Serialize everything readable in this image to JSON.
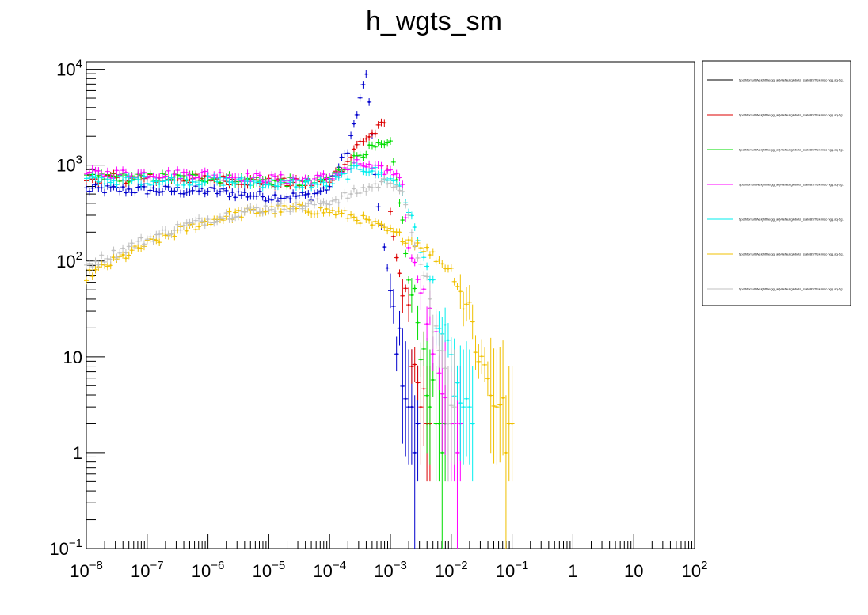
{
  "chart_data": {
    "type": "scatter",
    "title": "h_wgts_sm",
    "xlabel": "",
    "ylabel": "",
    "x_scale": "log",
    "y_scale": "log",
    "xlim": [
      1e-08,
      100
    ],
    "ylim": [
      0.1,
      12000
    ],
    "x_ticks": [
      {
        "value": 1e-08,
        "base": "10",
        "exp": "−8"
      },
      {
        "value": 1e-07,
        "base": "10",
        "exp": "−7"
      },
      {
        "value": 1e-06,
        "base": "10",
        "exp": "−6"
      },
      {
        "value": 1e-05,
        "base": "10",
        "exp": "−5"
      },
      {
        "value": 0.0001,
        "base": "10",
        "exp": "−4"
      },
      {
        "value": 0.001,
        "base": "10",
        "exp": "−3"
      },
      {
        "value": 0.01,
        "base": "10",
        "exp": "−2"
      },
      {
        "value": 0.1,
        "base": "10",
        "exp": "−1"
      },
      {
        "value": 1,
        "base": "1",
        "exp": ""
      },
      {
        "value": 10,
        "base": "10",
        "exp": ""
      },
      {
        "value": 100,
        "base": "10",
        "exp": "2"
      }
    ],
    "y_ticks": [
      {
        "value": 0.1,
        "base": "10",
        "exp": "−1"
      },
      {
        "value": 1,
        "base": "1",
        "exp": ""
      },
      {
        "value": 10,
        "base": "10",
        "exp": ""
      },
      {
        "value": 100,
        "base": "10",
        "exp": "2"
      },
      {
        "value": 1000,
        "base": "10",
        "exp": "3"
      },
      {
        "value": 10000,
        "base": "10",
        "exp": "4"
      }
    ],
    "grid": false,
    "legend_position": "right",
    "series": [
      {
        "color": "#000000",
        "plateau": 0,
        "x": [],
        "y": []
      },
      {
        "color": "#0000cc",
        "plateau": 530,
        "x": [
          1e-08,
          1e-06,
          1e-05,
          5e-05,
          0.0001,
          0.0002,
          0.0003,
          0.0004,
          0.0006,
          0.0008,
          0.001,
          0.0012,
          0.0015,
          0.002,
          0.0025,
          0.003
        ],
        "y": [
          560,
          540,
          470,
          480,
          600,
          1500,
          4000,
          9500,
          500,
          130,
          45,
          20,
          10,
          3,
          1.5,
          1
        ]
      },
      {
        "color": "#dd0000",
        "plateau": 720,
        "x": [
          1e-08,
          1e-06,
          1e-05,
          5e-05,
          0.0001,
          0.0002,
          0.0003,
          0.0005,
          0.0008,
          0.001,
          0.0015,
          0.002,
          0.003,
          0.004,
          0.005
        ],
        "y": [
          730,
          720,
          660,
          640,
          700,
          1100,
          1700,
          2100,
          2700,
          300,
          60,
          20,
          5,
          2,
          1
        ]
      },
      {
        "color": "#00dd00",
        "plateau": 740,
        "x": [
          1e-08,
          1e-06,
          1e-05,
          5e-05,
          0.0001,
          0.0002,
          0.0003,
          0.0005,
          0.001,
          0.0015,
          0.002,
          0.003,
          0.004,
          0.006,
          0.008
        ],
        "y": [
          750,
          740,
          680,
          650,
          720,
          1000,
          1300,
          1500,
          1600,
          350,
          60,
          20,
          6,
          2,
          1
        ]
      },
      {
        "color": "#ff00ff",
        "plateau": 820,
        "x": [
          1e-08,
          1e-06,
          1e-05,
          5e-05,
          0.0001,
          0.0002,
          0.0003,
          0.0005,
          0.001,
          0.0015,
          0.002,
          0.003,
          0.005,
          0.008,
          0.015
        ],
        "y": [
          820,
          800,
          720,
          700,
          760,
          900,
          1050,
          920,
          850,
          800,
          150,
          60,
          15,
          4,
          1
        ]
      },
      {
        "color": "#00eeee",
        "plateau": 700,
        "x": [
          1e-08,
          1e-06,
          1e-05,
          5e-05,
          0.0001,
          0.0002,
          0.0003,
          0.0005,
          0.001,
          0.0015,
          0.003,
          0.005,
          0.008,
          0.015,
          0.025
        ],
        "y": [
          700,
          690,
          650,
          640,
          650,
          800,
          950,
          900,
          700,
          600,
          150,
          50,
          12,
          3,
          1
        ]
      },
      {
        "color": "#f0c000",
        "plateau": 0,
        "x": [
          1e-08,
          3e-08,
          1e-07,
          3e-07,
          1e-06,
          3e-06,
          1e-05,
          3e-05,
          0.0001,
          0.0003,
          0.001,
          0.003,
          0.01,
          0.02,
          0.03,
          0.05,
          0.08,
          0.1
        ],
        "y": [
          70,
          100,
          150,
          200,
          260,
          310,
          340,
          350,
          330,
          280,
          200,
          150,
          80,
          30,
          10,
          4,
          2,
          1
        ]
      },
      {
        "color": "#c0c0c0",
        "plateau": 0,
        "x": [
          1e-08,
          3e-08,
          1e-07,
          3e-07,
          1e-06,
          3e-06,
          1e-05,
          3e-05,
          0.0001,
          0.0002,
          0.0005,
          0.001,
          0.0015,
          0.003,
          0.005,
          0.008,
          0.012
        ],
        "y": [
          90,
          120,
          170,
          220,
          270,
          320,
          360,
          370,
          420,
          480,
          600,
          700,
          550,
          100,
          25,
          6,
          1.5
        ]
      }
    ],
    "legend": [
      {
        "label": "$pathtomultiWeightfile/gg_aQ/defaultglobeta_stateBSTtelemsc-hgq.aq-2g1",
        "color": "#000000"
      },
      {
        "label": "$pathtomultiWeightfile/gg_aQ/defaultglobeta_stateBSTtelemsc-hgq.aq-2g1",
        "color": "#dd0000"
      },
      {
        "label": "$pathtomultiWeightfile/gg_aQ/defaultglobeta_stateBSTtelemsc-hgq.aq-2g1",
        "color": "#00dd00"
      },
      {
        "label": "$pathtomultiWeightfile/gg_aQ/defaultglobeta_stateBSTtelemsc-hgq.aq-2g1",
        "color": "#ff00ff"
      },
      {
        "label": "$pathtomultiWeightfile/gg_aQ/defaultglobeta_stateBSTtelemsc-hgq.aq-2g1",
        "color": "#00eeee"
      },
      {
        "label": "$pathtomultiWeightfile/gg_aQ/defaultglobeta_stateBSTtelemsc-hgq.aq-2g1",
        "color": "#f0c000"
      },
      {
        "label": "$pathtomultiWeightfile/gg_aQ/defaultglobeta_stateBSTtelemsc-hgq.aq-2g1",
        "color": "#c0c0c0"
      }
    ]
  }
}
